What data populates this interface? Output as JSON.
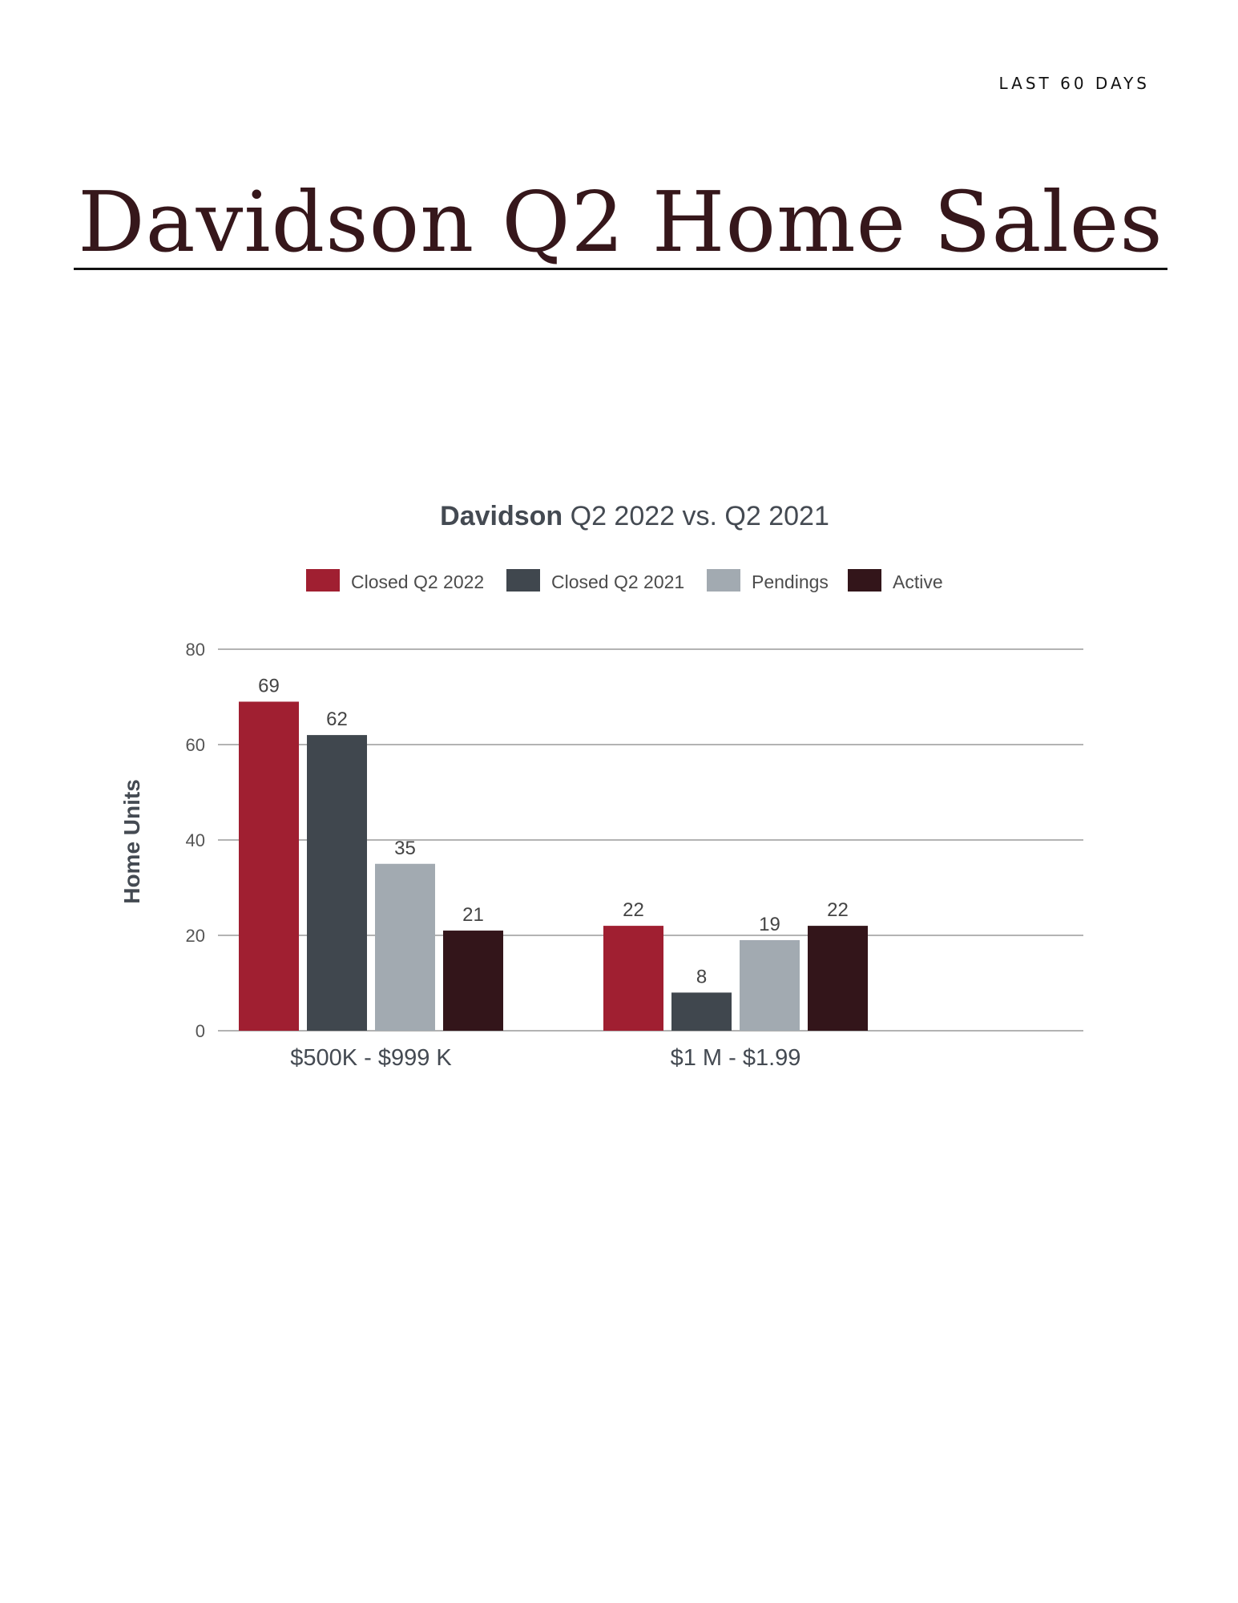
{
  "header": {
    "period": "LAST 60 DAYS",
    "title": "Davidson Q2 Home Sales"
  },
  "chart_data": {
    "type": "bar",
    "title_bold": "Davidson",
    "title_rest": " Q2 2022 vs. Q2 2021",
    "ylabel": "Home Units",
    "xlabel": "",
    "ylim": [
      0,
      80
    ],
    "yticks": [
      0,
      20,
      40,
      60,
      80
    ],
    "grid": true,
    "legend_position": "top",
    "categories": [
      "$500K - $999 K",
      "$1 M - $1.99"
    ],
    "series": [
      {
        "name": "Closed Q2 2022",
        "color": "#a01f31",
        "values": [
          69,
          22
        ]
      },
      {
        "name": "Closed Q2 2021",
        "color": "#40474e",
        "values": [
          62,
          8
        ]
      },
      {
        "name": "Pendings",
        "color": "#a2aab1",
        "values": [
          35,
          19
        ]
      },
      {
        "name": "Active",
        "color": "#33151a",
        "values": [
          21,
          22
        ]
      }
    ]
  }
}
